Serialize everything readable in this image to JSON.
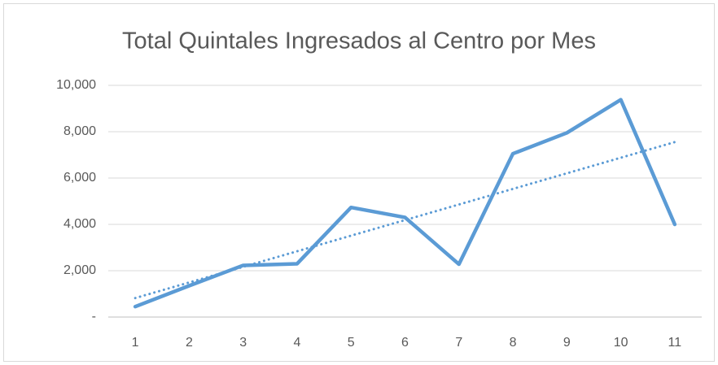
{
  "chart_data": {
    "type": "line",
    "title": "Total Quintales Ingresados al Centro por Mes",
    "categories": [
      "1",
      "2",
      "3",
      "4",
      "5",
      "6",
      "7",
      "8",
      "9",
      "10",
      "11"
    ],
    "series": [
      {
        "color": "#5b9bd5",
        "values": [
          450,
          1350,
          2230,
          2300,
          4730,
          4300,
          2280,
          7050,
          7950,
          9380,
          4000
        ]
      }
    ],
    "trendline": {
      "type": "linear",
      "style": "dotted",
      "color": "#5b9bd5",
      "values": [
        820,
        1493,
        2166,
        2839,
        3512,
        4185,
        4858,
        5531,
        6204,
        6877,
        7550
      ]
    },
    "ylim": [
      0,
      10000
    ],
    "yticks": [
      {
        "value": 0,
        "label": "-"
      },
      {
        "value": 2000,
        "label": "2,000"
      },
      {
        "value": 4000,
        "label": "4,000"
      },
      {
        "value": 6000,
        "label": "6,000"
      },
      {
        "value": 8000,
        "label": "8,000"
      },
      {
        "value": 10000,
        "label": "10,000"
      }
    ],
    "grid": true
  }
}
